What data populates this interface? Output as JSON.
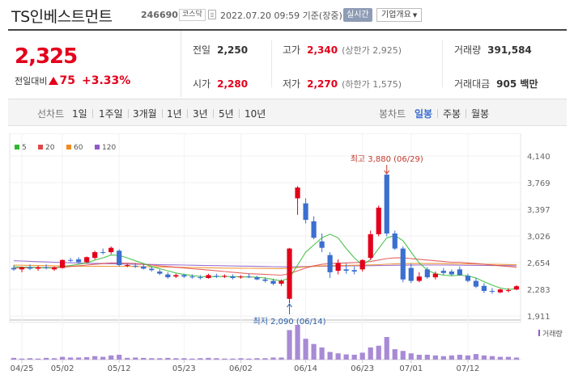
{
  "header": {
    "title": "TS인베스트먼트",
    "code": "246690",
    "market": "코스닥",
    "datetime": "2022.07.20 09:59 기준(장중)",
    "realtime": "실시간",
    "company_info": "기업개요"
  },
  "price": {
    "current": "2,325",
    "change_label": "전일대비",
    "change_amount": "75",
    "change_percent": "+3.33%"
  },
  "stats": {
    "prev_close_label": "전일",
    "prev_close": "2,250",
    "open_label": "시가",
    "open": "2,280",
    "high_label": "고가",
    "high": "2,340",
    "high_sub": "(상한가 2,925)",
    "low_label": "저가",
    "low": "2,270",
    "low_sub": "(하한가 1,575)",
    "volume_label": "거래량",
    "volume": "391,584",
    "amount_label": "거래대금",
    "amount": "905 백만"
  },
  "toolbar": {
    "line_label": "선차트",
    "periods": [
      "1일",
      "1주일",
      "3개월",
      "1년",
      "3년",
      "5년",
      "10년"
    ],
    "candle_label": "봉차트",
    "candles": [
      "일봉",
      "주봉",
      "월봉"
    ],
    "active_candle": "일봉"
  },
  "chart_data": {
    "type": "candlestick",
    "legend": [
      {
        "name": "5",
        "color": "#2eb82e"
      },
      {
        "name": "20",
        "color": "#e04848"
      },
      {
        "name": "60",
        "color": "#f08a1c"
      },
      {
        "name": "120",
        "color": "#8e5ac8"
      }
    ],
    "y_ticks": [
      "4,140",
      "3,769",
      "3,397",
      "3,026",
      "2,654",
      "2,283",
      "1,911"
    ],
    "ylim": [
      1911,
      4140
    ],
    "x_ticks": [
      "04/25",
      "05/02",
      "05/12",
      "05/23",
      "06/02",
      "06/14",
      "06/23",
      "07/01",
      "07/12"
    ],
    "x_tick_index": [
      1,
      6,
      13,
      21,
      28,
      36,
      43,
      49,
      56
    ],
    "high_annotation": "최고 3,880 (06/29)",
    "low_annotation": "최저 2,090 (06/14)",
    "volume_label": "거래량",
    "up_color": "#e3001b",
    "down_color": "#3b6fd0",
    "candles": [
      {
        "o": 2580,
        "h": 2620,
        "l": 2540,
        "c": 2560
      },
      {
        "o": 2560,
        "h": 2600,
        "l": 2520,
        "c": 2590
      },
      {
        "o": 2590,
        "h": 2630,
        "l": 2550,
        "c": 2570
      },
      {
        "o": 2570,
        "h": 2610,
        "l": 2540,
        "c": 2590
      },
      {
        "o": 2590,
        "h": 2630,
        "l": 2560,
        "c": 2580
      },
      {
        "o": 2560,
        "h": 2600,
        "l": 2540,
        "c": 2590
      },
      {
        "o": 2580,
        "h": 2700,
        "l": 2570,
        "c": 2690
      },
      {
        "o": 2690,
        "h": 2720,
        "l": 2660,
        "c": 2680
      },
      {
        "o": 2700,
        "h": 2730,
        "l": 2640,
        "c": 2660
      },
      {
        "o": 2660,
        "h": 2740,
        "l": 2650,
        "c": 2730
      },
      {
        "o": 2720,
        "h": 2820,
        "l": 2700,
        "c": 2800
      },
      {
        "o": 2800,
        "h": 2850,
        "l": 2770,
        "c": 2790
      },
      {
        "o": 2800,
        "h": 2880,
        "l": 2770,
        "c": 2860
      },
      {
        "o": 2820,
        "h": 2840,
        "l": 2600,
        "c": 2620
      },
      {
        "o": 2610,
        "h": 2640,
        "l": 2590,
        "c": 2620
      },
      {
        "o": 2610,
        "h": 2650,
        "l": 2580,
        "c": 2600
      },
      {
        "o": 2600,
        "h": 2630,
        "l": 2560,
        "c": 2570
      },
      {
        "o": 2570,
        "h": 2600,
        "l": 2530,
        "c": 2550
      },
      {
        "o": 2530,
        "h": 2560,
        "l": 2480,
        "c": 2500
      },
      {
        "o": 2490,
        "h": 2520,
        "l": 2430,
        "c": 2450
      },
      {
        "o": 2460,
        "h": 2500,
        "l": 2440,
        "c": 2480
      },
      {
        "o": 2480,
        "h": 2500,
        "l": 2440,
        "c": 2460
      },
      {
        "o": 2460,
        "h": 2490,
        "l": 2430,
        "c": 2450
      },
      {
        "o": 2450,
        "h": 2480,
        "l": 2420,
        "c": 2440
      },
      {
        "o": 2440,
        "h": 2500,
        "l": 2430,
        "c": 2480
      },
      {
        "o": 2470,
        "h": 2500,
        "l": 2440,
        "c": 2460
      },
      {
        "o": 2460,
        "h": 2490,
        "l": 2440,
        "c": 2470
      },
      {
        "o": 2460,
        "h": 2490,
        "l": 2420,
        "c": 2440
      },
      {
        "o": 2450,
        "h": 2480,
        "l": 2430,
        "c": 2460
      },
      {
        "o": 2460,
        "h": 2500,
        "l": 2440,
        "c": 2450
      },
      {
        "o": 2450,
        "h": 2470,
        "l": 2410,
        "c": 2420
      },
      {
        "o": 2420,
        "h": 2450,
        "l": 2380,
        "c": 2400
      },
      {
        "o": 2400,
        "h": 2430,
        "l": 2340,
        "c": 2360
      },
      {
        "o": 2360,
        "h": 2420,
        "l": 2330,
        "c": 2400
      },
      {
        "o": 2150,
        "h": 2860,
        "l": 2090,
        "c": 2850
      },
      {
        "o": 3550,
        "h": 3720,
        "l": 3320,
        "c": 3700
      },
      {
        "o": 3480,
        "h": 3550,
        "l": 3200,
        "c": 3250
      },
      {
        "o": 3230,
        "h": 3300,
        "l": 2980,
        "c": 3000
      },
      {
        "o": 2950,
        "h": 3060,
        "l": 2800,
        "c": 2860
      },
      {
        "o": 2760,
        "h": 2800,
        "l": 2440,
        "c": 2520
      },
      {
        "o": 2540,
        "h": 2700,
        "l": 2490,
        "c": 2650
      },
      {
        "o": 2560,
        "h": 2640,
        "l": 2500,
        "c": 2540
      },
      {
        "o": 2550,
        "h": 2600,
        "l": 2490,
        "c": 2530
      },
      {
        "o": 2560,
        "h": 2700,
        "l": 2530,
        "c": 2690
      },
      {
        "o": 2720,
        "h": 3100,
        "l": 2690,
        "c": 3050
      },
      {
        "o": 3050,
        "h": 3450,
        "l": 3020,
        "c": 3420
      },
      {
        "o": 3880,
        "h": 3880,
        "l": 3020,
        "c": 3060
      },
      {
        "o": 3060,
        "h": 3100,
        "l": 2830,
        "c": 2850
      },
      {
        "o": 2850,
        "h": 2880,
        "l": 2380,
        "c": 2420
      },
      {
        "o": 2580,
        "h": 2640,
        "l": 2370,
        "c": 2400
      },
      {
        "o": 2400,
        "h": 2520,
        "l": 2380,
        "c": 2460
      },
      {
        "o": 2560,
        "h": 2590,
        "l": 2430,
        "c": 2450
      },
      {
        "o": 2450,
        "h": 2530,
        "l": 2420,
        "c": 2500
      },
      {
        "o": 2540,
        "h": 2580,
        "l": 2480,
        "c": 2510
      },
      {
        "o": 2530,
        "h": 2560,
        "l": 2470,
        "c": 2490
      },
      {
        "o": 2560,
        "h": 2600,
        "l": 2470,
        "c": 2480
      },
      {
        "o": 2470,
        "h": 2500,
        "l": 2380,
        "c": 2400
      },
      {
        "o": 2400,
        "h": 2440,
        "l": 2300,
        "c": 2320
      },
      {
        "o": 2330,
        "h": 2370,
        "l": 2230,
        "c": 2260
      },
      {
        "o": 2260,
        "h": 2300,
        "l": 2220,
        "c": 2250
      },
      {
        "o": 2240,
        "h": 2290,
        "l": 2230,
        "c": 2280
      },
      {
        "o": 2260,
        "h": 2300,
        "l": 2240,
        "c": 2270
      },
      {
        "o": 2280,
        "h": 2340,
        "l": 2270,
        "c": 2325
      }
    ],
    "volume": [
      5,
      3,
      4,
      3,
      5,
      4,
      8,
      6,
      6,
      7,
      10,
      8,
      12,
      14,
      5,
      6,
      5,
      4,
      4,
      5,
      4,
      4,
      3,
      4,
      5,
      4,
      3,
      3,
      4,
      3,
      4,
      4,
      6,
      6,
      85,
      100,
      60,
      45,
      35,
      22,
      18,
      15,
      14,
      20,
      35,
      40,
      65,
      30,
      25,
      18,
      14,
      14,
      12,
      10,
      12,
      14,
      12,
      16,
      12,
      10,
      8,
      8,
      6
    ],
    "ma5": [
      2600,
      2590,
      2590,
      2585,
      2580,
      2580,
      2600,
      2615,
      2630,
      2650,
      2690,
      2720,
      2760,
      2755,
      2720,
      2680,
      2640,
      2600,
      2570,
      2540,
      2510,
      2490,
      2475,
      2460,
      2455,
      2460,
      2460,
      2460,
      2455,
      2455,
      2450,
      2440,
      2420,
      2400,
      2440,
      2620,
      2800,
      2900,
      3000,
      3050,
      3000,
      2850,
      2720,
      2620,
      2700,
      2850,
      3000,
      3030,
      2960,
      2800,
      2650,
      2550,
      2500,
      2480,
      2470,
      2480,
      2470,
      2440,
      2390,
      2340,
      2300,
      2280,
      2290
    ],
    "ma20": [
      2580,
      2582,
      2584,
      2585,
      2585,
      2584,
      2590,
      2600,
      2610,
      2620,
      2630,
      2640,
      2650,
      2650,
      2645,
      2640,
      2630,
      2620,
      2610,
      2600,
      2590,
      2580,
      2570,
      2560,
      2550,
      2540,
      2530,
      2520,
      2510,
      2500,
      2495,
      2490,
      2485,
      2480,
      2500,
      2540,
      2580,
      2610,
      2630,
      2640,
      2645,
      2650,
      2655,
      2660,
      2670,
      2690,
      2710,
      2720,
      2720,
      2710,
      2700,
      2690,
      2680,
      2670,
      2660,
      2660,
      2650,
      2640,
      2630,
      2620,
      2610,
      2600,
      2590
    ],
    "ma60": [
      2620,
      2618,
      2616,
      2614,
      2612,
      2610,
      2608,
      2606,
      2604,
      2603,
      2602,
      2602,
      2603,
      2603,
      2602,
      2600,
      2598,
      2596,
      2594,
      2592,
      2590,
      2588,
      2586,
      2584,
      2582,
      2580,
      2578,
      2577,
      2576,
      2575,
      2574,
      2573,
      2572,
      2571,
      2575,
      2585,
      2595,
      2602,
      2608,
      2612,
      2614,
      2616,
      2618,
      2620,
      2622,
      2626,
      2632,
      2636,
      2638,
      2640,
      2641,
      2641,
      2640,
      2639,
      2638,
      2637,
      2636,
      2635,
      2633,
      2631,
      2629,
      2627,
      2625
    ],
    "ma120": [
      2680,
      2676,
      2672,
      2668,
      2664,
      2660,
      2656,
      2652,
      2648,
      2645,
      2642,
      2640,
      2638,
      2636,
      2634,
      2632,
      2630,
      2628,
      2626,
      2624,
      2622,
      2620,
      2618,
      2616,
      2614,
      2612,
      2610,
      2608,
      2606,
      2604,
      2602,
      2600,
      2598,
      2596,
      2596,
      2598,
      2600,
      2602,
      2604,
      2606,
      2607,
      2608,
      2609,
      2610,
      2611,
      2613,
      2615,
      2617,
      2618,
      2619,
      2620,
      2620,
      2620,
      2620,
      2619,
      2618,
      2617,
      2616,
      2615,
      2614,
      2613,
      2612,
      2611
    ]
  }
}
